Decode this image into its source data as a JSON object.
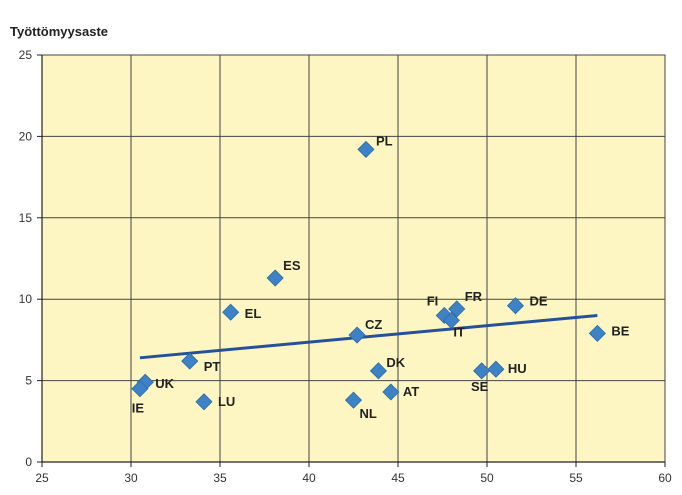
{
  "chart_data": {
    "type": "scatter",
    "ylabel": "Työttömyysaste",
    "xlabel": "",
    "xlim": [
      25,
      60
    ],
    "ylim": [
      0,
      25
    ],
    "xticks": [
      25,
      30,
      35,
      40,
      45,
      50,
      55,
      60
    ],
    "yticks": [
      0,
      5,
      10,
      15,
      20,
      25
    ],
    "grid": true,
    "colors": {
      "plot_bg": "#fdf6c3",
      "marker": "#3d82c4",
      "trendline": "#26509a",
      "grid": "#444444"
    },
    "points": [
      {
        "label": "PL",
        "x": 43.2,
        "y": 19.2
      },
      {
        "label": "ES",
        "x": 38.1,
        "y": 11.3
      },
      {
        "label": "EL",
        "x": 35.6,
        "y": 9.2
      },
      {
        "label": "CZ",
        "x": 42.7,
        "y": 7.8
      },
      {
        "label": "FI",
        "x": 47.6,
        "y": 9.0
      },
      {
        "label": "FR",
        "x": 48.3,
        "y": 9.4
      },
      {
        "label": "IT",
        "x": 48.0,
        "y": 8.7
      },
      {
        "label": "DE",
        "x": 51.6,
        "y": 9.6
      },
      {
        "label": "BE",
        "x": 56.2,
        "y": 7.9
      },
      {
        "label": "DK",
        "x": 43.9,
        "y": 5.6
      },
      {
        "label": "AT",
        "x": 44.6,
        "y": 4.3
      },
      {
        "label": "NL",
        "x": 42.5,
        "y": 3.8
      },
      {
        "label": "SE",
        "x": 49.7,
        "y": 5.6
      },
      {
        "label": "HU",
        "x": 50.5,
        "y": 5.7
      },
      {
        "label": "PT",
        "x": 33.3,
        "y": 6.2
      },
      {
        "label": "UK",
        "x": 30.8,
        "y": 4.9
      },
      {
        "label": "IE",
        "x": 30.5,
        "y": 4.5
      },
      {
        "label": "LU",
        "x": 34.1,
        "y": 3.7
      }
    ],
    "trendline": {
      "x": [
        30.5,
        56.2
      ],
      "y": [
        6.4,
        9.0
      ]
    }
  }
}
